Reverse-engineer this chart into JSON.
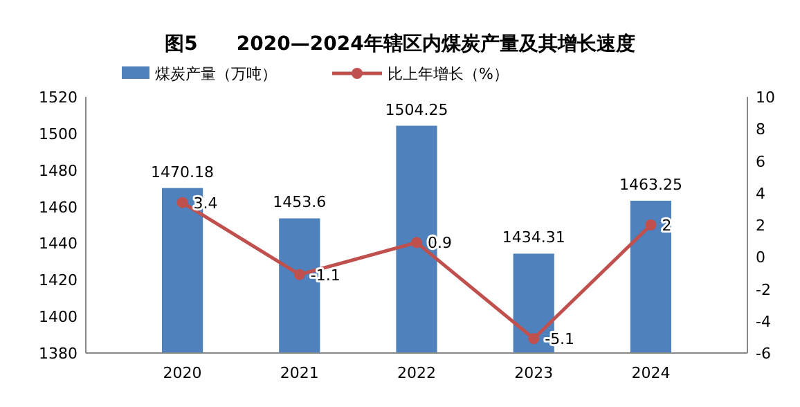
{
  "chart_data": {
    "type": "bar",
    "title": "图5　　2020—2024年辖区内煤炭产量及其增长速度",
    "categories": [
      "2020",
      "2021",
      "2022",
      "2023",
      "2024"
    ],
    "series": [
      {
        "name": "煤炭产量（万吨）",
        "color": "#4f81bd",
        "values": [
          1470.18,
          1453.6,
          1504.25,
          1434.31,
          1463.25
        ]
      },
      {
        "name": "比上年增长（%）",
        "color": "#c0504d",
        "type": "line",
        "axis": "y2",
        "marker": "circle",
        "values": [
          3.4,
          -1.1,
          0.9,
          -5.1,
          2
        ]
      }
    ],
    "ylim": [
      1380,
      1520
    ],
    "yticks": [
      1380,
      1400,
      1420,
      1440,
      1460,
      1480,
      1500,
      1520
    ],
    "y2lim": [
      -6,
      10
    ],
    "y2ticks": [
      -6,
      -4,
      -2,
      0,
      2,
      4,
      6,
      8,
      10
    ],
    "data_labels": true,
    "legend": "top"
  }
}
